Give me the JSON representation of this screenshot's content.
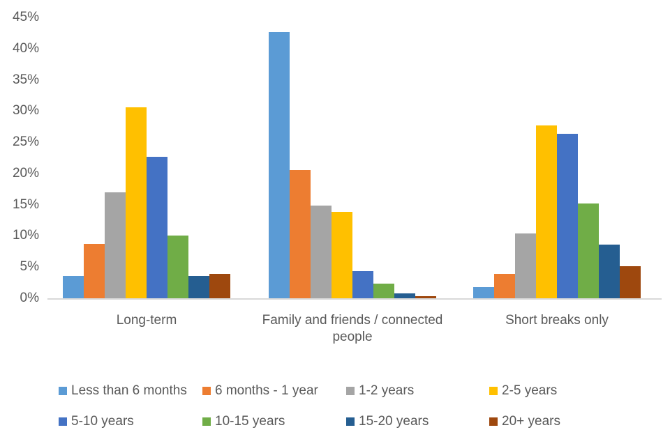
{
  "chart_data": {
    "type": "bar",
    "title": "",
    "xlabel": "",
    "ylabel": "",
    "categories": [
      "Long-term",
      "Family and friends / connected people",
      "Short breaks only"
    ],
    "series": [
      {
        "name": "Less than 6 months",
        "color": "#5B9BD5",
        "values": [
          3.6,
          42.7,
          1.8
        ]
      },
      {
        "name": "6 months - 1 year",
        "color": "#ED7D31",
        "values": [
          8.7,
          20.6,
          3.9
        ]
      },
      {
        "name": "1-2 years",
        "color": "#A5A5A5",
        "values": [
          17.0,
          14.9,
          10.4
        ]
      },
      {
        "name": "2-5 years",
        "color": "#FFC000",
        "values": [
          30.6,
          13.9,
          27.7
        ]
      },
      {
        "name": "5-10 years",
        "color": "#4472C4",
        "values": [
          22.7,
          4.4,
          26.4
        ]
      },
      {
        "name": "10-15 years",
        "color": "#70AD47",
        "values": [
          10.0,
          2.3,
          15.2
        ]
      },
      {
        "name": "15-20 years",
        "color": "#255E91",
        "values": [
          3.6,
          0.8,
          8.6
        ]
      },
      {
        "name": "20+ years",
        "color": "#9E480E",
        "values": [
          3.9,
          0.3,
          5.1
        ]
      }
    ],
    "ylim": [
      0,
      45
    ],
    "ytick_step": 5,
    "yticks": [
      "45%",
      "40%",
      "35%",
      "30%",
      "25%",
      "20%",
      "15%",
      "10%",
      "5%",
      "0%"
    ],
    "grid": false,
    "legend_position": "bottom",
    "legend_rows": 2,
    "axis_line_color": "#D9D9D9",
    "text_color": "#595959"
  }
}
